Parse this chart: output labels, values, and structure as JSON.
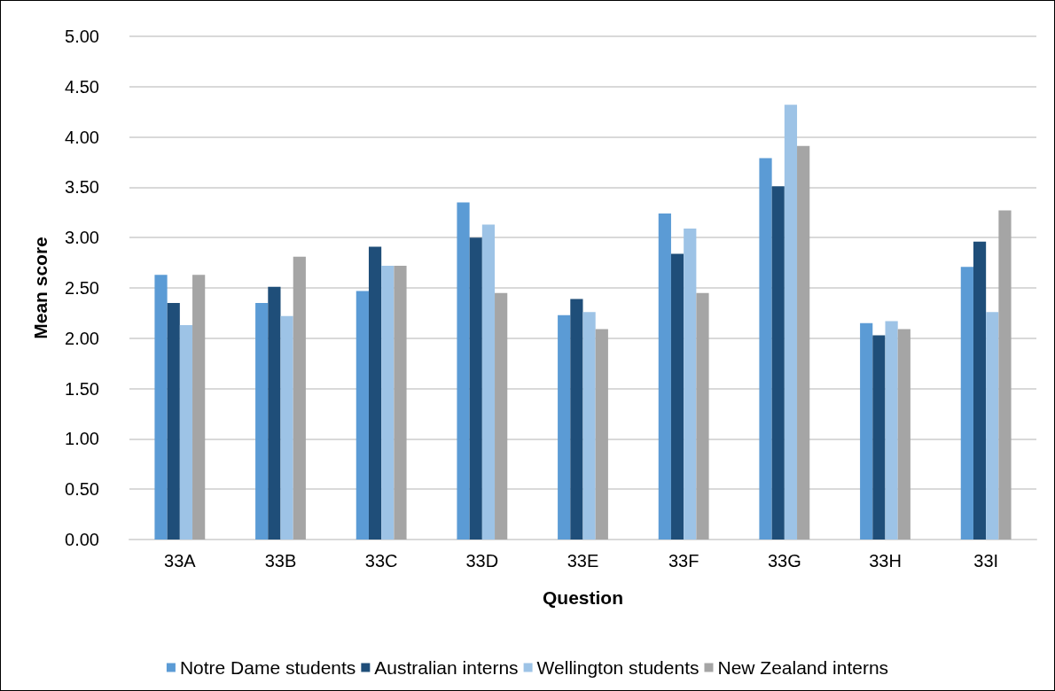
{
  "chart_data": {
    "type": "bar",
    "xlabel": "Question",
    "ylabel": "Mean score",
    "categories": [
      "33A",
      "33B",
      "33C",
      "33D",
      "33E",
      "33F",
      "33G",
      "33H",
      "33I"
    ],
    "series": [
      {
        "name": "Notre Dame students",
        "color": "#5b9bd5",
        "values": [
          2.63,
          2.35,
          2.47,
          3.35,
          2.23,
          3.24,
          3.79,
          2.15,
          2.71
        ]
      },
      {
        "name": "Australian interns",
        "color": "#1f4e79",
        "values": [
          2.35,
          2.51,
          2.91,
          3.0,
          2.39,
          2.84,
          3.51,
          2.03,
          2.96
        ]
      },
      {
        "name": "Wellington students",
        "color": "#9dc3e6",
        "values": [
          2.13,
          2.22,
          2.72,
          3.13,
          2.26,
          3.09,
          4.32,
          2.17,
          2.26
        ]
      },
      {
        "name": "New Zealand interns",
        "color": "#a5a5a5",
        "values": [
          2.63,
          2.81,
          2.72,
          2.45,
          2.09,
          2.45,
          3.91,
          2.09,
          3.27
        ]
      }
    ],
    "ylim": [
      0,
      5
    ],
    "yticks": [
      {
        "value": 0,
        "label": "0.00"
      },
      {
        "value": 0.5,
        "label": "0.50"
      },
      {
        "value": 1,
        "label": "1.00"
      },
      {
        "value": 1.5,
        "label": "1.50"
      },
      {
        "value": 2,
        "label": "2.00"
      },
      {
        "value": 2.5,
        "label": "2.50"
      },
      {
        "value": 3,
        "label": "3.00"
      },
      {
        "value": 3.5,
        "label": "3.50"
      },
      {
        "value": 4,
        "label": "4.00"
      },
      {
        "value": 4.5,
        "label": "4.50"
      },
      {
        "value": 5,
        "label": "5.00"
      }
    ],
    "grid": "y",
    "legend": "bottom"
  }
}
